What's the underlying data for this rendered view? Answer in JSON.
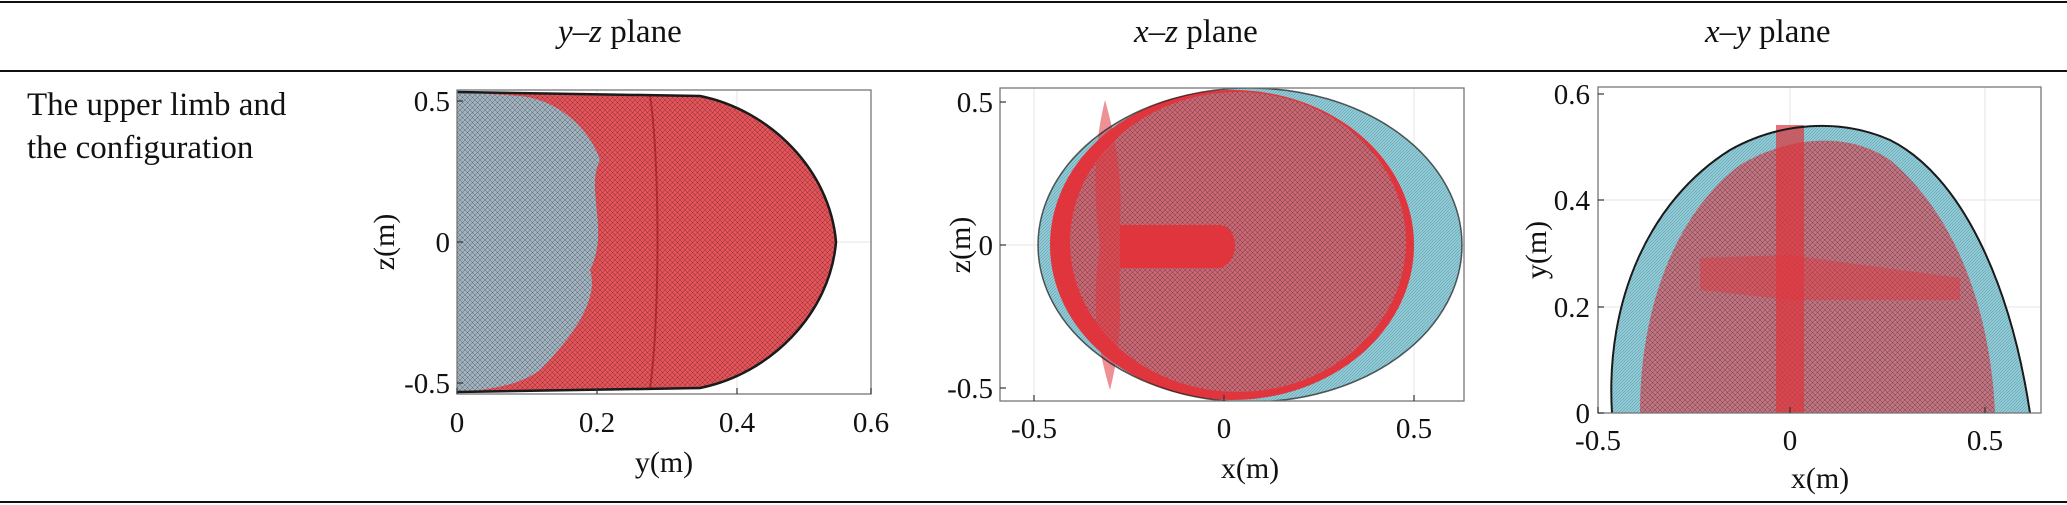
{
  "table": {
    "headers": [
      {
        "var": "y–z",
        "word": "plane"
      },
      {
        "var": "x–z",
        "word": "plane"
      },
      {
        "var": "x–y",
        "word": "plane"
      }
    ],
    "row_label_line1": "The upper limb and",
    "row_label_line2": "the configuration"
  },
  "colors": {
    "workspace_cyan": "#8ecbd8",
    "configuration_red": "#e0353c",
    "mesh_dark": "#1a1a1a"
  },
  "chart_data": [
    {
      "type": "scatter",
      "title": "y–z plane",
      "xlabel": "y(m)",
      "ylabel": "z(m)",
      "xlim": [
        0,
        0.6
      ],
      "ylim": [
        -0.55,
        0.55
      ],
      "xticks": [
        "0",
        "0.2",
        "0.4",
        "0.6"
      ],
      "yticks": [
        "-0.5",
        "0",
        "0.5"
      ],
      "grid": true,
      "series": [
        {
          "color": "#8ecbd8",
          "extent": {
            "y": [
              0,
              0.55
            ],
            "z": [
              -0.53,
              0.53
            ]
          }
        },
        {
          "color": "#e0353c",
          "extent": {
            "y": [
              0,
              0.55
            ],
            "z": [
              -0.53,
              0.53
            ]
          }
        }
      ]
    },
    {
      "type": "scatter",
      "title": "x–z plane",
      "xlabel": "x(m)",
      "ylabel": "z(m)",
      "xlim": [
        -0.55,
        0.63
      ],
      "ylim": [
        -0.55,
        0.55
      ],
      "xticks": [
        "-0.5",
        "0",
        "0.5"
      ],
      "yticks": [
        "-0.5",
        "0",
        "0.5"
      ],
      "grid": true,
      "series": [
        {
          "color": "#8ecbd8",
          "extent": {
            "x": [
              -0.47,
              0.63
            ],
            "z": [
              -0.53,
              0.53
            ]
          }
        },
        {
          "color": "#e0353c",
          "extent": {
            "x": [
              -0.4,
              0.55
            ],
            "z": [
              -0.53,
              0.53
            ]
          }
        }
      ]
    },
    {
      "type": "scatter",
      "title": "x–y plane",
      "xlabel": "x(m)",
      "ylabel": "y(m)",
      "xlim": [
        -0.5,
        0.65
      ],
      "ylim": [
        0,
        0.6
      ],
      "xticks": [
        "-0.5",
        "0",
        "0.5"
      ],
      "yticks": [
        "0",
        "0.2",
        "0.4",
        "0.6"
      ],
      "grid": true,
      "series": [
        {
          "color": "#8ecbd8",
          "extent": {
            "x": [
              -0.47,
              0.63
            ],
            "y": [
              0,
              0.55
            ]
          }
        },
        {
          "color": "#e0353c",
          "extent": {
            "x": [
              -0.4,
              0.55
            ],
            "y": [
              0,
              0.55
            ]
          }
        }
      ]
    }
  ]
}
